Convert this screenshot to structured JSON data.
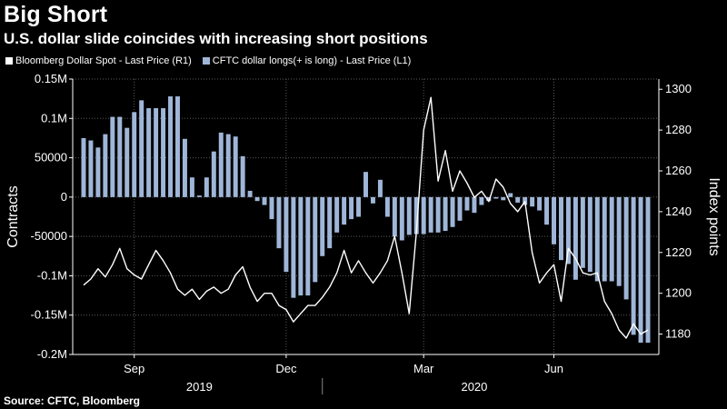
{
  "header": {
    "title": "Big Short",
    "subtitle": "U.S. dollar slide coincides with increasing short positions"
  },
  "footer": {
    "source": "Source: CFTC, Bloomberg"
  },
  "colors": {
    "background": "#000000",
    "line": "#ffffff",
    "bars": "#9fb6d8",
    "grid": "#5a5a5a",
    "text": "#ffffff"
  },
  "chart_data": {
    "type": "bar",
    "title": "Big Short",
    "subtitle": "U.S. dollar slide coincides with increasing short positions",
    "left_axis": {
      "label": "Contracts",
      "min": -200000,
      "max": 150000,
      "ticks": [
        150000,
        100000,
        50000,
        0,
        -50000,
        -100000,
        -150000,
        -200000
      ],
      "tick_labels": [
        "0.15M",
        "0.1M",
        "50000",
        "0",
        "-50000",
        "-0.1M",
        "-0.15M",
        "-0.2M"
      ]
    },
    "right_axis": {
      "label": "Index points",
      "min": 1170,
      "max": 1305,
      "ticks": [
        1300,
        1280,
        1260,
        1240,
        1220,
        1200,
        1180
      ],
      "tick_labels": [
        "1300",
        "1280",
        "1260",
        "1240",
        "1220",
        "1200",
        "1180"
      ]
    },
    "x_axis": {
      "month_labels": [
        "Sep",
        "Dec",
        "Mar",
        "Jun"
      ],
      "year_labels": [
        "2019",
        "2020"
      ],
      "month_positions_week": [
        7,
        28,
        47,
        65
      ],
      "year_positions_week": [
        16,
        54
      ],
      "year_divider_week": 33,
      "total_weeks": 79
    },
    "grid": true,
    "series": [
      {
        "name": "Bloomberg Dollar Spot - Last Price (R1)",
        "axis": "right",
        "kind": "line",
        "x": [
          0,
          1,
          2,
          3,
          4,
          5,
          6,
          7,
          8,
          9,
          10,
          11,
          12,
          13,
          14,
          15,
          16,
          17,
          18,
          19,
          20,
          21,
          22,
          23,
          24,
          25,
          26,
          27,
          28,
          29,
          30,
          31,
          32,
          33,
          34,
          35,
          36,
          37,
          38,
          39,
          40,
          41,
          42,
          43,
          44,
          45,
          46,
          47,
          48,
          49,
          50,
          51,
          52,
          53,
          54,
          55,
          56,
          57,
          58,
          59,
          60,
          61,
          62,
          63,
          64,
          65,
          66,
          67,
          68,
          69,
          70,
          71,
          72,
          73,
          74,
          75,
          76,
          77,
          78
        ],
        "values": [
          1204,
          1207,
          1212,
          1208,
          1214,
          1222,
          1212,
          1209,
          1207,
          1214,
          1221,
          1216,
          1210,
          1202,
          1199,
          1202,
          1197,
          1201,
          1203,
          1200,
          1202,
          1209,
          1213,
          1203,
          1196,
          1200,
          1200,
          1194,
          1192,
          1186,
          1190,
          1194,
          1194,
          1198,
          1203,
          1210,
          1221,
          1210,
          1216,
          1210,
          1205,
          1210,
          1216,
          1228,
          1210,
          1190,
          1230,
          1280,
          1296,
          1255,
          1270,
          1250,
          1260,
          1254,
          1247,
          1250,
          1245,
          1256,
          1252,
          1244,
          1240,
          1245,
          1220,
          1205,
          1210,
          1214,
          1196,
          1222,
          1217,
          1210,
          1209,
          1210,
          1196,
          1190,
          1182,
          1178,
          1185,
          1180,
          1182
        ]
      },
      {
        "name": "CFTC dollar longs(+ is long) - Last Price (L1)",
        "axis": "left",
        "kind": "bar",
        "x": [
          0,
          1,
          2,
          3,
          4,
          5,
          6,
          7,
          8,
          9,
          10,
          11,
          12,
          13,
          14,
          15,
          16,
          17,
          18,
          19,
          20,
          21,
          22,
          23,
          24,
          25,
          26,
          27,
          28,
          29,
          30,
          31,
          32,
          33,
          34,
          35,
          36,
          37,
          38,
          39,
          40,
          41,
          42,
          43,
          44,
          45,
          46,
          47,
          48,
          49,
          50,
          51,
          52,
          53,
          54,
          55,
          56,
          57,
          58,
          59,
          60,
          61,
          62,
          63,
          64,
          65,
          66,
          67,
          68,
          69,
          70,
          71,
          72,
          73,
          74,
          75,
          76,
          77,
          78
        ],
        "values": [
          75000,
          72000,
          63000,
          80000,
          102000,
          102000,
          88000,
          108000,
          123000,
          113000,
          113000,
          113000,
          128000,
          128000,
          74000,
          25000,
          2000,
          25000,
          58000,
          82000,
          80000,
          77000,
          52000,
          8000,
          -5000,
          -10000,
          -28000,
          -65000,
          -95000,
          -128000,
          -125000,
          -125000,
          -108000,
          -75000,
          -65000,
          -45000,
          -35000,
          -28000,
          -25000,
          32000,
          -8000,
          22000,
          -25000,
          -50000,
          -55000,
          -48000,
          -47000,
          -47000,
          -45000,
          -45000,
          -43000,
          -38000,
          -30000,
          -17000,
          -20000,
          -10000,
          -5000,
          -2000,
          -4000,
          5000,
          -7000,
          -10000,
          -12000,
          -17000,
          -35000,
          -60000,
          -80000,
          -85000,
          -105000,
          -90000,
          -95000,
          -107000,
          -107000,
          -107000,
          -113000,
          -130000,
          -175000,
          -185000,
          -185000
        ]
      }
    ]
  }
}
